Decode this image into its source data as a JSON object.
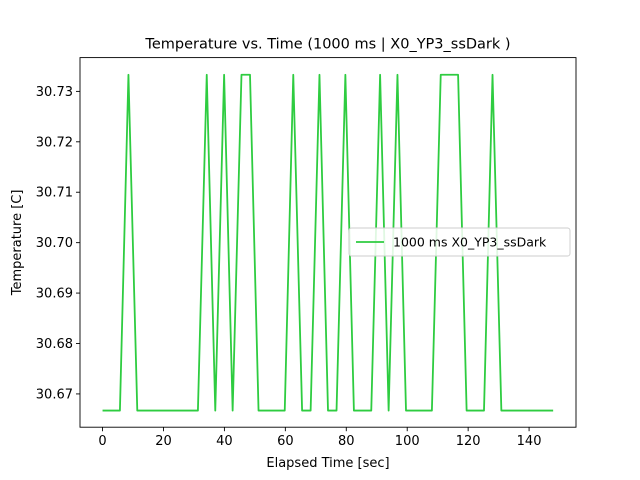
{
  "chart_data": {
    "type": "line",
    "title": "Temperature vs. Time (1000 ms | X0_YP3_ssDark )",
    "xlabel": "Elapsed Time [sec]",
    "ylabel": "Temperature [C]",
    "xlim": [
      -7.4,
      155.4
    ],
    "ylim": [
      30.6634,
      30.7367
    ],
    "xticks": [
      0,
      20,
      40,
      60,
      80,
      100,
      120,
      140
    ],
    "xtick_labels": [
      "0",
      "20",
      "40",
      "60",
      "80",
      "100",
      "120",
      "140"
    ],
    "yticks": [
      30.67,
      30.68,
      30.69,
      30.7,
      30.71,
      30.72,
      30.73
    ],
    "ytick_labels": [
      "30.67",
      "30.68",
      "30.69",
      "30.70",
      "30.71",
      "30.72",
      "30.73"
    ],
    "grid": false,
    "legend": {
      "position": "center-right"
    },
    "series": [
      {
        "name": "1000 ms X0_YP3_ssDark",
        "color": "#2ecc40",
        "x": [
          0,
          5.7,
          8.5,
          11.4,
          14.2,
          31.3,
          34.2,
          37.0,
          39.9,
          42.7,
          45.6,
          48.4,
          51.2,
          54.1,
          59.8,
          62.6,
          65.5,
          68.3,
          71.2,
          74.0,
          76.8,
          79.7,
          82.5,
          88.2,
          91.1,
          93.9,
          96.8,
          99.6,
          102.4,
          108.1,
          111.0,
          113.8,
          116.7,
          119.5,
          122.4,
          125.2,
          128.0,
          130.9,
          133.7,
          147.9
        ],
        "y": [
          30.6667,
          30.6667,
          30.7333,
          30.6667,
          30.6667,
          30.6667,
          30.7333,
          30.6667,
          30.7333,
          30.6667,
          30.7333,
          30.7333,
          30.6667,
          30.6667,
          30.6667,
          30.7333,
          30.6667,
          30.6667,
          30.7333,
          30.6667,
          30.6667,
          30.7333,
          30.6667,
          30.6667,
          30.7333,
          30.6667,
          30.7333,
          30.6667,
          30.6667,
          30.6667,
          30.7333,
          30.7333,
          30.7333,
          30.6667,
          30.6667,
          30.6667,
          30.7333,
          30.6667,
          30.6667,
          30.6667
        ]
      }
    ]
  }
}
